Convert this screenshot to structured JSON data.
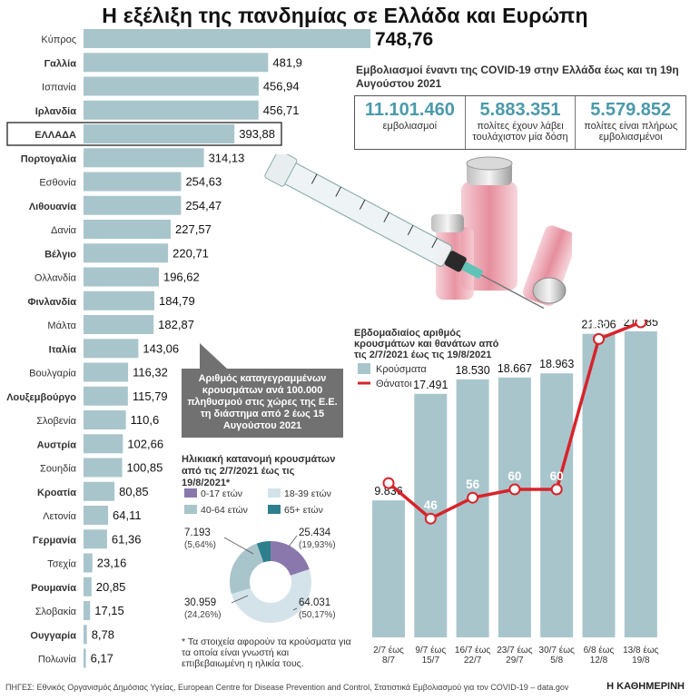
{
  "page": {
    "title": "Η εξέλιξη της πανδημίας σε Ελλάδα και Ευρώπη",
    "sources": "ΠΗΓΕΣ: Εθνικός Οργανισμός Δημόσιας Υγείας, European Centre for Disease Prevention and Control, Στατιστικά Εμβολιασμού για τον COVID-19 – data.gov.gr",
    "brand": "Η ΚΑΘΗΜΕΡΙΝΗ"
  },
  "vaccination": {
    "title": "Εμβολιασμοί έναντι της COVID-19 στην Ελλάδα έως και τη 19η Αυγούστου 2021",
    "stats": [
      {
        "value": "11.101.460",
        "label": "εμβολιασμοί"
      },
      {
        "value": "5.883.351",
        "label": "πολίτες έχουν λάβει τουλάχιστον μία δόση"
      },
      {
        "value": "5.579.852",
        "label": "πολίτες είναι πλήρως εμβολιασμένοι"
      }
    ]
  },
  "callout": {
    "text": "Αριθμός καταγεγραμμένων κρουσμάτων ανά 100.000 πληθυσμού στις χώρες της Ε.Ε. τη διάστημα από 2 έως 15 Αυγούστου 2021"
  },
  "age_chart": {
    "title": "Ηλικιακή κατανομή κρουσμάτων από τις 2/7/2021 έως τις 19/8/2021*",
    "note": "* Τα στοιχεία αφορούν τα κρούσματα για τα οποία είναι γνωστή και επιβεβαιωμένη η ηλικία τους."
  },
  "weekly_chart": {
    "title": "Εβδομαδιαίος αριθμός κρουσμάτων και θανάτων από τις 2/7/2021 έως τις 19/8/2021"
  },
  "chart_data": [
    {
      "type": "bar",
      "orientation": "horizontal",
      "highlight": "ΕΛΛΑΔΑ",
      "bar_color": "#a9c5cc",
      "highlight_color": "#a9c5cc",
      "categories": [
        "Κύπρος",
        "Γαλλία",
        "Ισπανία",
        "Ιρλανδία",
        "ΕΛΛΑΔΑ",
        "Πορτογαλία",
        "Εσθονία",
        "Λιθουανία",
        "Δανία",
        "Βέλγιο",
        "Ολλανδία",
        "Φινλανδία",
        "Μάλτα",
        "Ιταλία",
        "Βουλγαρία",
        "Λουξεμβούργο",
        "Σλοβενία",
        "Αυστρία",
        "Σουηδία",
        "Κροατία",
        "Λετονία",
        "Γερμανία",
        "Τσεχία",
        "Ρουμανία",
        "Σλοβακία",
        "Ουγγαρία",
        "Πολωνία"
      ],
      "values": [
        748.76,
        481.9,
        456.94,
        456.71,
        393.88,
        314.13,
        254.63,
        254.47,
        227.57,
        220.71,
        196.62,
        184.79,
        182.87,
        143.06,
        116.32,
        115.79,
        110.6,
        102.66,
        100.85,
        80.85,
        64.11,
        61.36,
        23.16,
        20.85,
        17.15,
        8.78,
        6.17
      ],
      "value_labels": [
        "748,76",
        "481,9",
        "456,94",
        "456,71",
        "393,88",
        "314,13",
        "254,63",
        "254,47",
        "227,57",
        "220,71",
        "196,62",
        "184,79",
        "182,87",
        "143,06",
        "116,32",
        "115,79",
        "110,6",
        "102,66",
        "100,85",
        "80,85",
        "64,11",
        "61,36",
        "23,16",
        "20,85",
        "17,15",
        "8,78",
        "6,17"
      ],
      "bold_labels": [
        "Γαλλία",
        "Ιρλανδία",
        "ΕΛΛΑΔΑ",
        "Πορτογαλία",
        "Λιθουανία",
        "Βέλγιο",
        "Φινλανδία",
        "Ιταλία",
        "Λουξεμβούργο",
        "Αυστρία",
        "Κροατία",
        "Γερμανία",
        "Ρουμανία",
        "Ουγγαρία"
      ]
    },
    {
      "type": "pie",
      "subtype": "donut",
      "legend": [
        {
          "name": "0-17 ετών",
          "color": "#8a78ad"
        },
        {
          "name": "18-39 ετών",
          "color": "#d4e3ea"
        },
        {
          "name": "40-64 ετών",
          "color": "#a9c5cc"
        },
        {
          "name": "65+ ετών",
          "color": "#2e7f8e"
        }
      ],
      "slices": [
        {
          "name": "0-17 ετών",
          "value": 25434,
          "pct": 19.93,
          "value_label": "25.434",
          "pct_label": "(19,93%)"
        },
        {
          "name": "18-39 ετών",
          "value": 64031,
          "pct": 50.17,
          "value_label": "64.031",
          "pct_label": "(50,17%)"
        },
        {
          "name": "40-64 ετών",
          "value": 30959,
          "pct": 24.26,
          "value_label": "30.959",
          "pct_label": "(24,26%)"
        },
        {
          "name": "65+ ετών",
          "value": 7193,
          "pct": 5.64,
          "value_label": "7.193",
          "pct_label": "(5,64%)"
        }
      ]
    },
    {
      "type": "bar",
      "combo": "bar+line",
      "categories": [
        [
          "2/7 έως",
          "8/7"
        ],
        [
          "9/7 έως",
          "15/7"
        ],
        [
          "16/7 έως",
          "22/7"
        ],
        [
          "23/7 έως",
          "29/7"
        ],
        [
          "30/7 έως",
          "5/8"
        ],
        [
          "6/8 έως",
          "12/8"
        ],
        [
          "13/8 έως",
          "19/8"
        ]
      ],
      "series": [
        {
          "name": "Κρούσματα",
          "color": "#a9c5cc",
          "values": [
            9836,
            17491,
            18530,
            18667,
            18963,
            21806,
            21985
          ],
          "labels": [
            "9.836",
            "17.491",
            "18.530",
            "18.667",
            "18.963",
            "21.806",
            "21.985"
          ]
        },
        {
          "name": "Θάνατοι",
          "color": "#d8232a",
          "values": [
            63,
            46,
            56,
            60,
            60,
            132,
            140
          ],
          "labels": [
            "63",
            "46",
            "56",
            "60",
            "60",
            "132",
            "140"
          ]
        }
      ]
    }
  ]
}
